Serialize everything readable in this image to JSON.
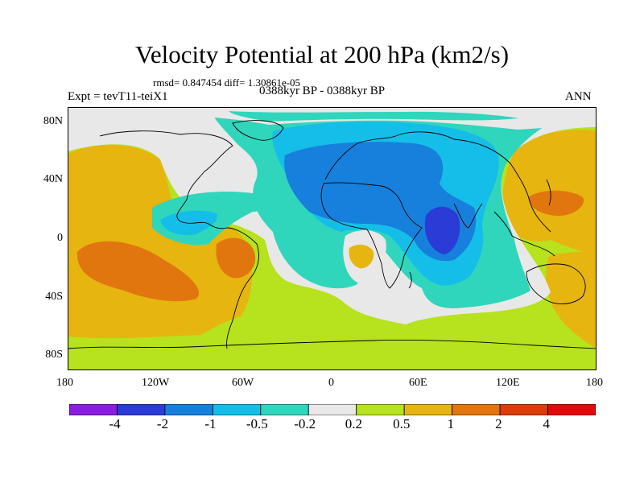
{
  "title": "Velocity Potential at 200 hPa (km2/s)",
  "stats": "rmsd= 0.847454 diff= 1.30861e-05",
  "experiment": "Expt = tevT11-teiX1",
  "period": "0388kyr BP - 0388kyr BP",
  "season": "ANN",
  "lat_labels": [
    "80N",
    "40N",
    "0",
    "40S",
    "80S"
  ],
  "lon_labels": [
    "180",
    "120W",
    "60W",
    "0",
    "60E",
    "120E",
    "180"
  ],
  "colorbar": {
    "colors": [
      "#8a1ee0",
      "#2b3bd6",
      "#1680dc",
      "#14bee8",
      "#2fd6bc",
      "#e8e8e8",
      "#b6e21e",
      "#e6b510",
      "#e2760e",
      "#dc3c0a",
      "#e4080a"
    ],
    "labels": [
      "-4",
      "-2",
      "-1",
      "-0.5",
      "-0.2",
      "0.2",
      "0.5",
      "1",
      "2",
      "4"
    ]
  }
}
